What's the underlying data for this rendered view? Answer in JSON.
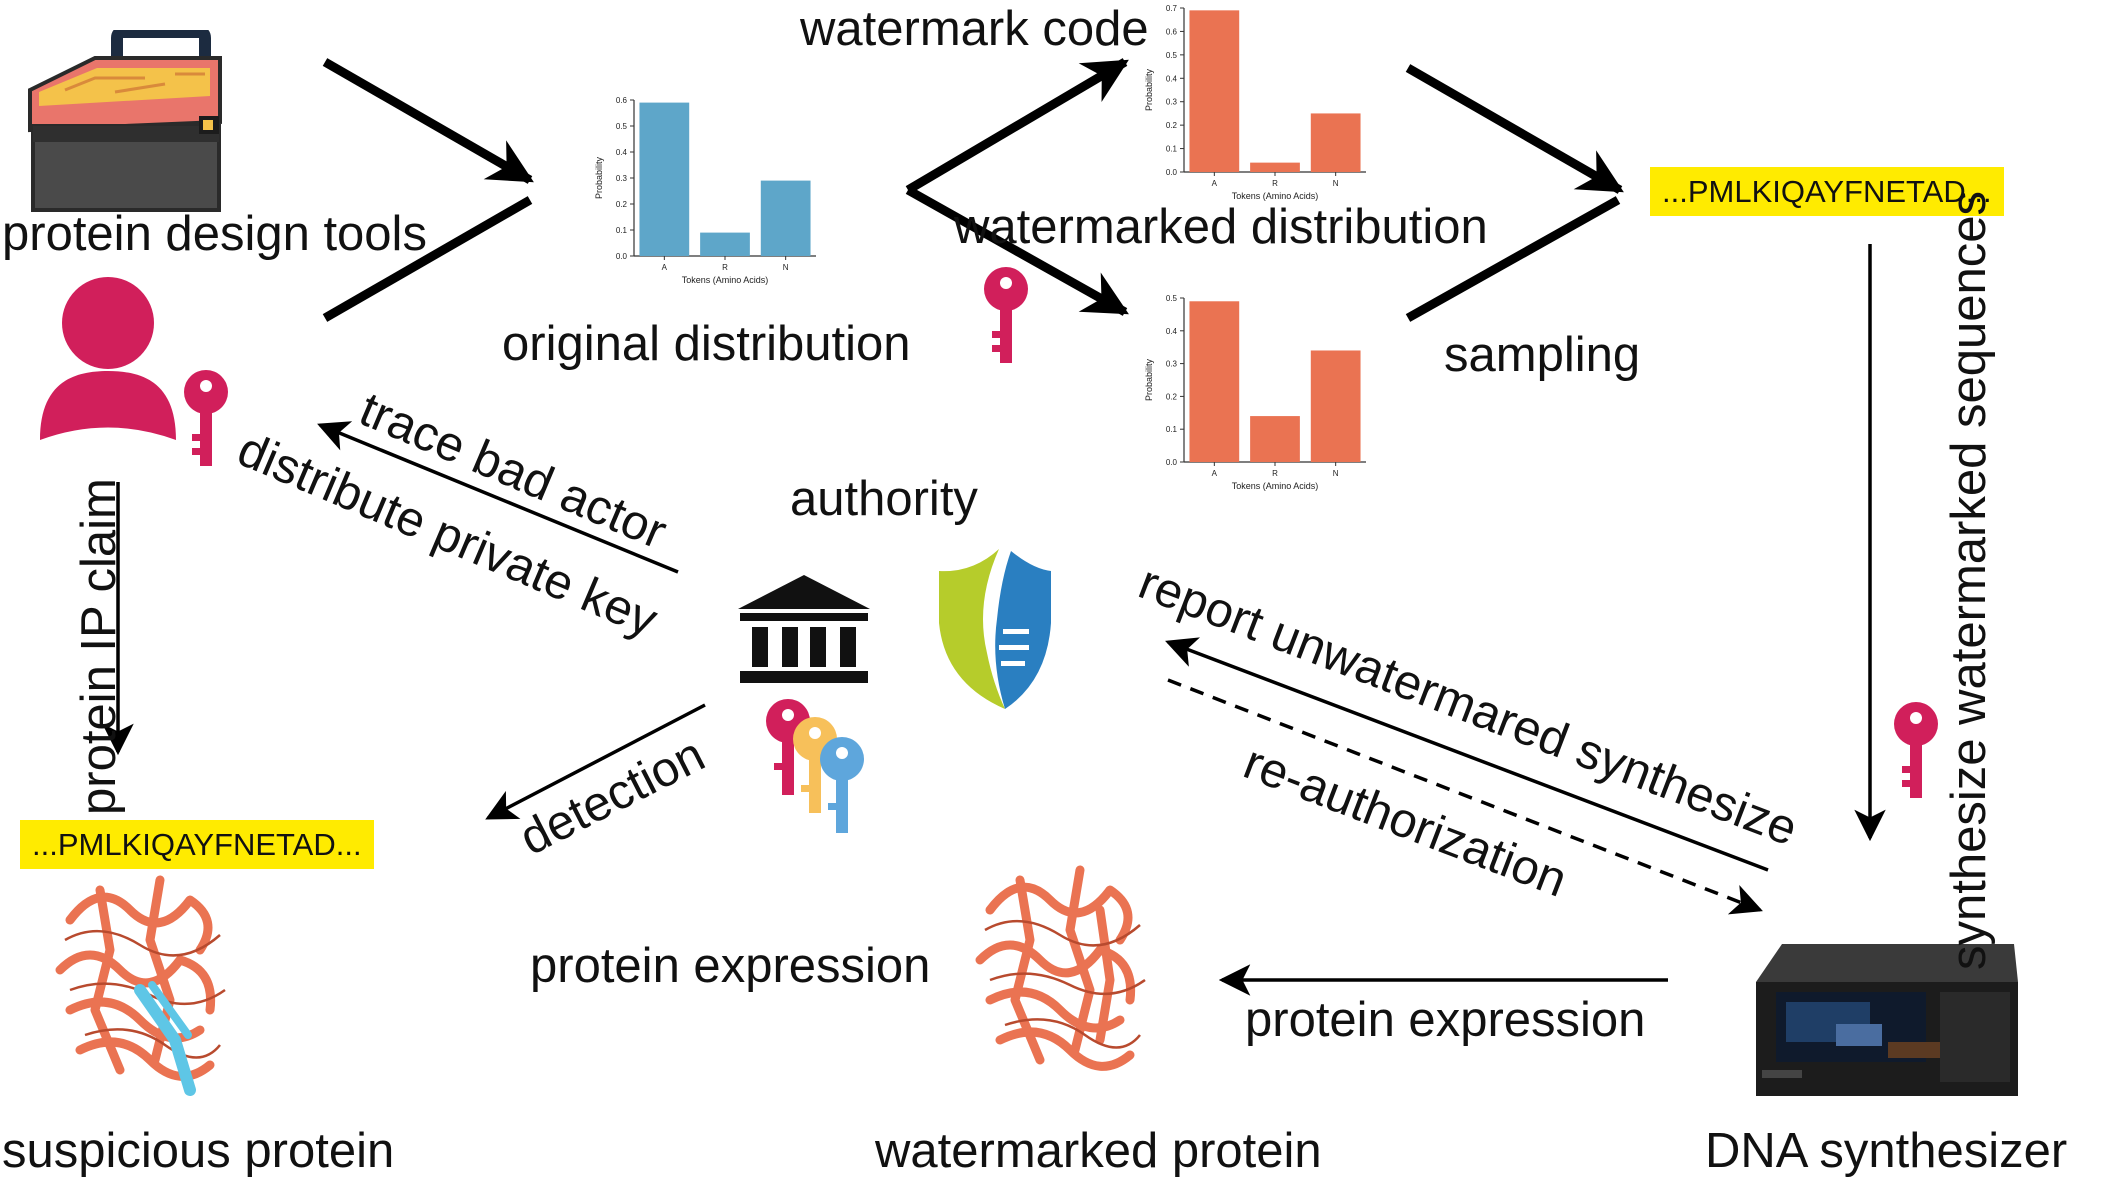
{
  "labels": {
    "protein_design_tools": "protein design tools",
    "original_distribution": "original distribution",
    "watermark_code": "watermark code",
    "watermarked_distribution": "watermarked distribution",
    "sampling": "sampling",
    "synthesize_watermarked_sequences": "synthesize watermarked sequences",
    "protein_ip_claim": "protein IP claim",
    "trace_bad_actor": "trace bad actor",
    "distribute_private_key": "distribute private key",
    "authority": "authority",
    "detection": "detection",
    "report_unwatermared_synthesize": "report unwatermared synthesize",
    "re_authorization": "re-authorization",
    "protein_expression_left": "protein expression",
    "protein_expression_right": "protein expression",
    "suspicious_protein": "suspicious protein",
    "watermarked_protein": "watermarked protein",
    "dna_synthesizer": "DNA synthesizer"
  },
  "sequences": {
    "top": "...PMLKIQAYFNETAD...",
    "bottom": "...PMLKIQAYFNETAD..."
  },
  "icons": {
    "toolbox": "toolbox-icon",
    "user": "user-icon",
    "key": "key-icon",
    "bank": "institution-icon",
    "shield": "shield-logo",
    "protein": "protein-structure-image",
    "synthesizer": "dna-synthesizer-image"
  },
  "colors": {
    "original_bars": "#5ea6c9",
    "watermarked_bars": "#ea7352",
    "sequence_highlight": "#ffeb00",
    "user_and_key": "#d11f5b",
    "protein": "#ea7352",
    "shield_green": "#b6cc2b",
    "shield_blue": "#2a7fc1"
  },
  "chart_data": [
    {
      "type": "bar",
      "categories": [
        "A",
        "R",
        "N"
      ],
      "values": [
        0.59,
        0.09,
        0.29
      ],
      "xlabel": "Tokens (Amino Acids)",
      "ylabel": "Probability",
      "ylim": [
        0,
        0.6
      ],
      "yticks": [
        "0.0",
        "0.1",
        "0.2",
        "0.3",
        "0.4",
        "0.5",
        "0.6"
      ],
      "color": "#5ea6c9"
    },
    {
      "type": "bar",
      "categories": [
        "A",
        "R",
        "N"
      ],
      "values": [
        0.69,
        0.04,
        0.25
      ],
      "xlabel": "Tokens (Amino Acids)",
      "ylabel": "Probability",
      "ylim": [
        0,
        0.7
      ],
      "yticks": [
        "0.0",
        "0.1",
        "0.2",
        "0.3",
        "0.4",
        "0.5",
        "0.6",
        "0.7"
      ],
      "color": "#ea7352"
    },
    {
      "type": "bar",
      "categories": [
        "A",
        "R",
        "N"
      ],
      "values": [
        0.49,
        0.14,
        0.34
      ],
      "xlabel": "Tokens (Amino Acids)",
      "ylabel": "Probability",
      "ylim": [
        0,
        0.5
      ],
      "yticks": [
        "0.0",
        "0.1",
        "0.2",
        "0.3",
        "0.4",
        "0.5"
      ],
      "color": "#ea7352"
    }
  ]
}
